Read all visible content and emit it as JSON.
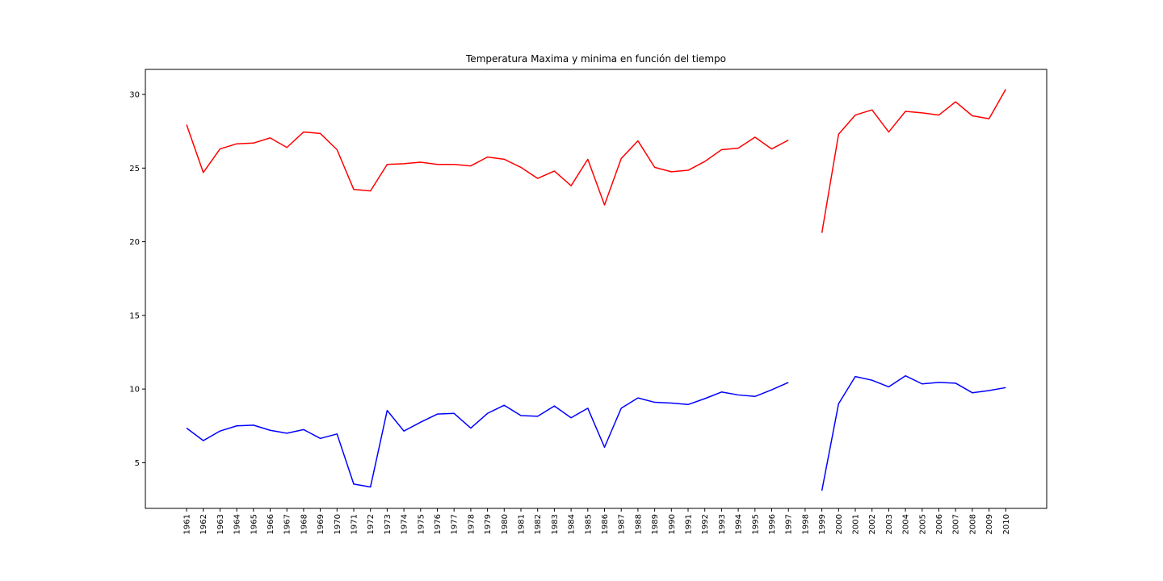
{
  "chart_data": {
    "type": "line",
    "title": "Temperatura Maxima y minima en función del tiempo",
    "xlabel": "",
    "ylabel": "",
    "x": [
      "1961",
      "1962",
      "1963",
      "1964",
      "1965",
      "1966",
      "1967",
      "1968",
      "1969",
      "1970",
      "1971",
      "1972",
      "1973",
      "1974",
      "1975",
      "1976",
      "1977",
      "1978",
      "1979",
      "1980",
      "1981",
      "1982",
      "1983",
      "1984",
      "1985",
      "1986",
      "1987",
      "1988",
      "1989",
      "1990",
      "1991",
      "1992",
      "1993",
      "1994",
      "1995",
      "1996",
      "1997",
      "1998",
      "1999",
      "2000",
      "2001",
      "2002",
      "2003",
      "2004",
      "2005",
      "2006",
      "2007",
      "2008",
      "2009",
      "2010"
    ],
    "ylim": [
      1.9,
      31.7
    ],
    "yticks": [
      5,
      10,
      15,
      20,
      25,
      30
    ],
    "grid": false,
    "series": [
      {
        "color": "#ff0000",
        "values": [
          27.95,
          24.7,
          26.3,
          26.65,
          26.7,
          27.05,
          26.4,
          27.45,
          27.35,
          26.25,
          23.55,
          23.45,
          25.25,
          25.3,
          25.4,
          25.25,
          25.25,
          25.15,
          25.75,
          25.6,
          25.05,
          24.3,
          24.8,
          23.8,
          25.6,
          22.5,
          25.65,
          26.85,
          25.05,
          24.75,
          24.85,
          25.45,
          26.25,
          26.35,
          27.1,
          26.3,
          26.9,
          null,
          20.6,
          27.3,
          28.6,
          28.95,
          27.45,
          28.85,
          28.75,
          28.6,
          29.5,
          28.55,
          28.35,
          30.35
        ]
      },
      {
        "color": "#0000ff",
        "values": [
          7.35,
          6.5,
          7.15,
          7.5,
          7.55,
          7.2,
          7.0,
          7.25,
          6.65,
          6.95,
          3.55,
          3.35,
          8.55,
          7.15,
          7.75,
          8.3,
          8.35,
          7.35,
          8.35,
          8.9,
          8.2,
          8.15,
          8.85,
          8.05,
          8.7,
          6.05,
          8.7,
          9.4,
          9.1,
          9.05,
          8.95,
          9.35,
          9.8,
          9.6,
          9.5,
          9.95,
          10.45,
          null,
          3.1,
          9.0,
          10.85,
          10.6,
          10.15,
          10.9,
          10.35,
          10.45,
          10.4,
          9.75,
          9.9,
          10.1
        ]
      }
    ]
  }
}
